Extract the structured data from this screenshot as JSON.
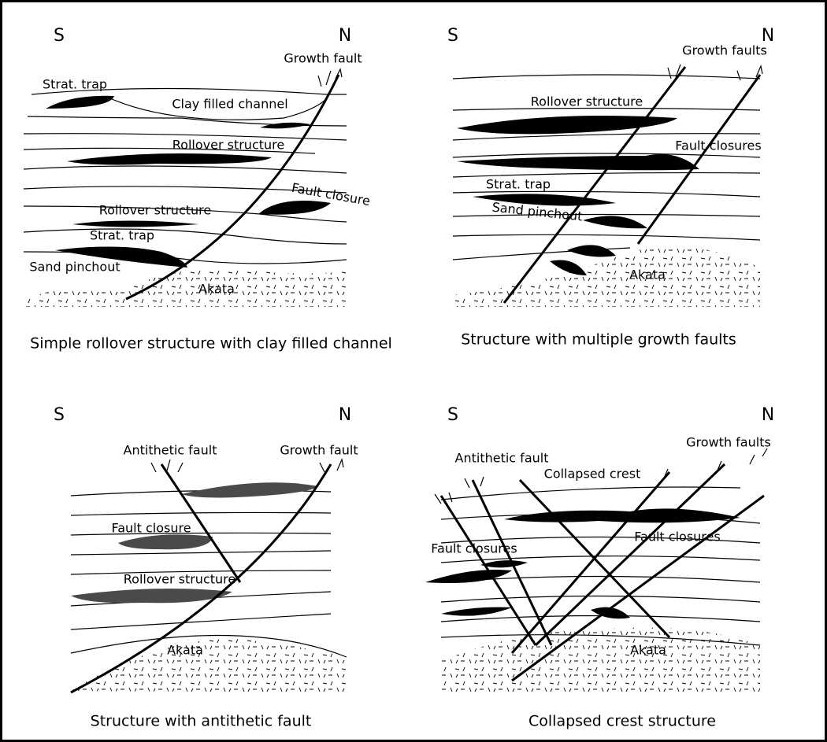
{
  "panels": [
    {
      "south": "S",
      "north": "N",
      "labels": [
        "Growth fault",
        "Strat. trap",
        "Clay filled channel",
        "Rollover structure",
        "Fault closure",
        "Rollover structure",
        "Strat. trap",
        "Sand pinchout",
        "Akata"
      ],
      "caption": "Simple rollover structure with clay filled channel"
    },
    {
      "south": "S",
      "north": "N",
      "labels": [
        "Growth faults",
        "Rollover structure",
        "Fault closures",
        "Strat. trap",
        "Sand pinchout",
        "Akata"
      ],
      "caption": "Structure with multiple growth faults"
    },
    {
      "south": "S",
      "north": "N",
      "labels": [
        "Antithetic fault",
        "Growth fault",
        "Fault closure",
        "Rollover structure",
        "Akata"
      ],
      "caption": "Structure with antithetic fault"
    },
    {
      "south": "S",
      "north": "N",
      "labels": [
        "Growth faults",
        "Antithetic fault",
        "Collapsed crest",
        "Fault closures",
        "Fault closures",
        "Akata"
      ],
      "caption": "Collapsed crest structure"
    }
  ]
}
